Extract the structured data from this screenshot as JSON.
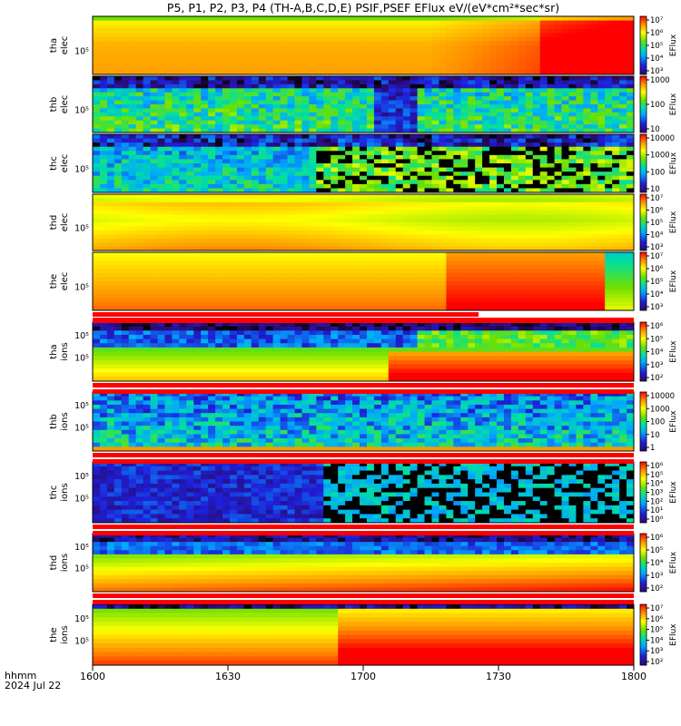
{
  "title": "P5, P1, P2, P3, P4 (TH-A,B,C,D,E) PSIF,PSEF EFlux eV/(eV*cm²*sec*sr)",
  "x_axis": {
    "label_line1": "hhmm",
    "label_line2": "2024 Jul 22",
    "ticks": [
      "1600",
      "1630",
      "1700",
      "1730",
      "1800"
    ]
  },
  "colorbar_label": "EFlux",
  "colors": {
    "flag_red": "#ff0000",
    "background": "#ffffff"
  },
  "chart_data": {
    "type": "heatmap",
    "x_range": [
      "16:00",
      "18:00"
    ],
    "panels": [
      {
        "name": "tha-elec",
        "label1": "tha",
        "label2": "elec",
        "ytick": "10⁵",
        "cbar_ticks": [
          "10⁷",
          "10⁶",
          "10⁵",
          "10⁴",
          "10³"
        ],
        "flag_after": false
      },
      {
        "name": "thb-elec",
        "label1": "thb",
        "label2": "elec",
        "ytick": "10⁵",
        "cbar_ticks": [
          "1000",
          "100",
          "10"
        ],
        "flag_after": false
      },
      {
        "name": "thc-elec",
        "label1": "thc",
        "label2": "elec",
        "ytick": "10⁵",
        "cbar_ticks": [
          "10000",
          "1000",
          "100",
          "10"
        ],
        "flag_after": false
      },
      {
        "name": "thd-elec",
        "label1": "thd",
        "label2": "elec",
        "ytick": "10⁵",
        "cbar_ticks": [
          "10⁷",
          "10⁶",
          "10⁵",
          "10⁴",
          "10³"
        ],
        "flag_after": false
      },
      {
        "name": "the-elec",
        "label1": "the",
        "label2": "elec",
        "ytick": "10⁵",
        "cbar_ticks": [
          "10⁷",
          "10⁶",
          "10⁵",
          "10⁴",
          "10³"
        ],
        "flag_after": true
      },
      {
        "name": "tha-ions",
        "label1": "tha",
        "label2": "ions",
        "ytick": "10⁵",
        "ytick_top": "10⁵",
        "cbar_ticks": [
          "10⁶",
          "10⁵",
          "10⁴",
          "10³",
          "10²"
        ],
        "flag_after": true
      },
      {
        "name": "thb-ions",
        "label1": "thb",
        "label2": "ions",
        "ytick": "10⁵",
        "ytick_top": "10⁵",
        "cbar_ticks": [
          "10000",
          "1000",
          "100",
          "10",
          "1"
        ],
        "flag_after": true
      },
      {
        "name": "thc-ions",
        "label1": "thc",
        "label2": "ions",
        "ytick": "10⁵",
        "ytick_top": "10⁵",
        "cbar_ticks": [
          "10⁶",
          "10⁵",
          "10⁴",
          "10³",
          "10²",
          "10¹",
          "10⁰"
        ],
        "flag_after": true
      },
      {
        "name": "thd-ions",
        "label1": "thd",
        "label2": "ions",
        "ytick": "10⁵",
        "ytick_top": "10⁵",
        "cbar_ticks": [
          "10⁶",
          "10⁵",
          "10⁴",
          "10³",
          "10²"
        ],
        "flag_after": true
      },
      {
        "name": "the-ions",
        "label1": "the",
        "label2": "ions",
        "ytick": "10⁵",
        "ytick_top": "10⁵",
        "cbar_ticks": [
          "10⁷",
          "10⁶",
          "10⁵",
          "10⁴",
          "10³",
          "10²"
        ],
        "flag_after": false
      }
    ]
  }
}
